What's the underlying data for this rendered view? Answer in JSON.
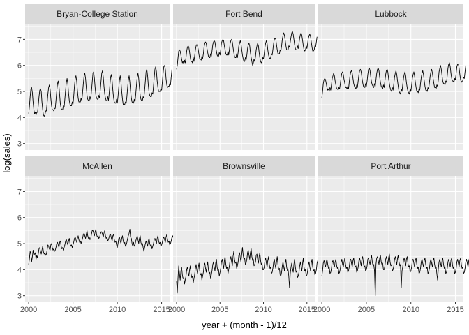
{
  "chart_data": {
    "type": "line",
    "facet_layout": "2x3",
    "xlabel": "year + (month - 1)/12",
    "ylabel": "log(sales)",
    "xlim": [
      1999.6,
      2015.9
    ],
    "ylim": [
      2.75,
      7.6
    ],
    "x_ticks": [
      2000,
      2005,
      2010,
      2015
    ],
    "x_tick_labels": [
      "2000",
      "2005",
      "2010",
      "2015"
    ],
    "y_ticks": [
      3,
      4,
      5,
      6,
      7
    ],
    "y_tick_labels": [
      "3",
      "4",
      "5",
      "6",
      "7"
    ],
    "grid": true,
    "colors": {
      "panel_bg": "#EBEBEB",
      "strip_bg": "#D9D9D9",
      "grid": "#FFFFFF",
      "line": "#000000"
    },
    "x_start": 2000.0,
    "x_step": 0.0833333,
    "facets": [
      {
        "name": "Bryan-College Station",
        "values": [
          4.15,
          4.4,
          4.8,
          5.1,
          5.15,
          4.95,
          4.6,
          4.3,
          4.15,
          4.2,
          4.1,
          4.2,
          4.2,
          4.45,
          4.8,
          5.05,
          5.1,
          5.0,
          4.6,
          4.3,
          4.1,
          4.05,
          4.1,
          4.25,
          4.25,
          4.55,
          4.9,
          5.15,
          5.25,
          5.1,
          4.75,
          4.45,
          4.3,
          4.3,
          4.25,
          4.35,
          4.35,
          4.65,
          5.0,
          5.3,
          5.4,
          5.2,
          4.85,
          4.5,
          4.35,
          4.3,
          4.3,
          4.45,
          4.4,
          4.7,
          5.05,
          5.35,
          5.5,
          5.3,
          4.95,
          4.65,
          4.5,
          4.45,
          4.45,
          4.6,
          4.5,
          4.8,
          5.2,
          5.5,
          5.6,
          5.4,
          5.05,
          4.75,
          4.6,
          4.6,
          4.6,
          4.75,
          4.65,
          4.95,
          5.3,
          5.6,
          5.7,
          5.5,
          5.15,
          4.85,
          4.7,
          4.65,
          4.65,
          4.8,
          4.7,
          5.0,
          5.35,
          5.7,
          5.75,
          5.5,
          5.15,
          4.85,
          4.75,
          4.7,
          4.7,
          4.85,
          4.75,
          5.05,
          5.4,
          5.7,
          5.8,
          5.55,
          5.2,
          4.9,
          4.75,
          4.65,
          4.65,
          4.8,
          4.65,
          4.9,
          5.25,
          5.55,
          5.65,
          5.4,
          5.05,
          4.75,
          4.6,
          4.55,
          4.55,
          4.7,
          4.55,
          4.8,
          5.15,
          5.45,
          5.6,
          5.35,
          5.0,
          4.7,
          4.5,
          4.5,
          4.5,
          4.6,
          4.55,
          4.8,
          5.15,
          5.45,
          5.6,
          5.35,
          5.0,
          4.75,
          4.6,
          4.55,
          4.55,
          4.7,
          4.6,
          4.9,
          5.25,
          5.55,
          5.7,
          5.5,
          5.15,
          4.85,
          4.7,
          4.65,
          4.65,
          4.8,
          4.75,
          5.05,
          5.4,
          5.75,
          5.85,
          5.6,
          5.25,
          4.95,
          4.85,
          4.8,
          4.8,
          4.95,
          4.9,
          5.2,
          5.55,
          5.85,
          5.95,
          5.75,
          5.4,
          5.15,
          5.0,
          5.0,
          5.0,
          5.1,
          5.05,
          5.35,
          5.7,
          5.95,
          6.0,
          5.85,
          5.5,
          5.25,
          5.15,
          5.2,
          5.2,
          5.3,
          5.25,
          5.55,
          5.85
        ]
      },
      {
        "name": "Fort Bend",
        "values": [
          5.85,
          6.0,
          6.3,
          6.55,
          6.6,
          6.55,
          6.4,
          6.25,
          6.1,
          6.15,
          6.05,
          6.2,
          6.1,
          6.3,
          6.55,
          6.7,
          6.75,
          6.7,
          6.5,
          6.3,
          6.15,
          6.15,
          6.1,
          6.3,
          6.15,
          6.35,
          6.6,
          6.75,
          6.8,
          6.75,
          6.6,
          6.4,
          6.25,
          6.25,
          6.2,
          6.35,
          6.25,
          6.45,
          6.7,
          6.85,
          6.9,
          6.85,
          6.65,
          6.5,
          6.35,
          6.3,
          6.3,
          6.45,
          6.35,
          6.55,
          6.8,
          6.9,
          6.95,
          6.9,
          6.7,
          6.55,
          6.4,
          6.35,
          6.35,
          6.5,
          6.4,
          6.6,
          6.85,
          6.95,
          7.0,
          6.95,
          6.75,
          6.6,
          6.45,
          6.4,
          6.4,
          6.55,
          6.4,
          6.6,
          6.85,
          6.95,
          7.0,
          6.9,
          6.7,
          6.5,
          6.35,
          6.3,
          6.3,
          6.45,
          6.3,
          6.5,
          6.75,
          6.85,
          6.95,
          6.85,
          6.6,
          6.4,
          6.25,
          6.15,
          6.15,
          6.3,
          6.2,
          6.4,
          6.65,
          6.8,
          6.85,
          6.75,
          6.5,
          6.3,
          6.15,
          6.0,
          6.1,
          6.25,
          6.15,
          6.35,
          6.6,
          6.75,
          6.85,
          6.75,
          6.5,
          6.3,
          6.15,
          6.1,
          6.15,
          6.3,
          6.25,
          6.45,
          6.7,
          6.85,
          6.95,
          6.85,
          6.6,
          6.4,
          6.3,
          6.25,
          6.3,
          6.45,
          6.4,
          6.6,
          6.85,
          7.0,
          7.05,
          7.0,
          6.8,
          6.6,
          6.45,
          6.45,
          6.45,
          6.6,
          6.55,
          6.75,
          7.0,
          7.15,
          7.25,
          7.15,
          6.95,
          6.75,
          6.6,
          6.6,
          6.6,
          6.75,
          6.7,
          6.9,
          7.1,
          7.25,
          7.3,
          7.2,
          7.0,
          6.8,
          6.65,
          6.6,
          6.6,
          6.75,
          6.65,
          6.85,
          7.05,
          7.2,
          7.25,
          7.15,
          6.95,
          6.75,
          6.6,
          6.55,
          6.6,
          6.75,
          6.65,
          6.85,
          7.05,
          7.15,
          7.2,
          7.1,
          6.9,
          6.7,
          6.55,
          6.55,
          6.6,
          6.75,
          6.7,
          6.9,
          7.1
        ]
      },
      {
        "name": "Lubbock",
        "values": [
          4.75,
          5.0,
          5.3,
          5.45,
          5.5,
          5.45,
          5.3,
          5.15,
          5.05,
          5.1,
          5.0,
          5.15,
          5.05,
          5.25,
          5.5,
          5.6,
          5.7,
          5.6,
          5.4,
          5.25,
          5.1,
          5.1,
          5.05,
          5.15,
          5.1,
          5.3,
          5.55,
          5.7,
          5.75,
          5.65,
          5.45,
          5.3,
          5.15,
          5.15,
          5.1,
          5.2,
          5.1,
          5.35,
          5.6,
          5.75,
          5.8,
          5.7,
          5.5,
          5.3,
          5.2,
          5.15,
          5.1,
          5.25,
          5.15,
          5.4,
          5.65,
          5.8,
          5.85,
          5.75,
          5.55,
          5.35,
          5.2,
          5.2,
          5.15,
          5.3,
          5.2,
          5.4,
          5.65,
          5.85,
          5.9,
          5.8,
          5.55,
          5.35,
          5.25,
          5.2,
          5.15,
          5.3,
          5.2,
          5.45,
          5.7,
          5.85,
          5.9,
          5.8,
          5.55,
          5.35,
          5.2,
          5.15,
          5.1,
          5.25,
          5.15,
          5.4,
          5.65,
          5.8,
          5.85,
          5.75,
          5.5,
          5.3,
          5.15,
          5.05,
          5.0,
          5.15,
          5.05,
          5.3,
          5.55,
          5.7,
          5.8,
          5.65,
          5.4,
          5.2,
          5.0,
          4.95,
          4.9,
          5.1,
          5.0,
          5.25,
          5.5,
          5.65,
          5.75,
          5.6,
          5.35,
          5.15,
          5.0,
          4.95,
          4.9,
          5.1,
          5.0,
          5.25,
          5.5,
          5.65,
          5.75,
          5.6,
          5.35,
          5.15,
          5.0,
          5.0,
          4.95,
          5.1,
          5.05,
          5.3,
          5.55,
          5.7,
          5.8,
          5.65,
          5.4,
          5.2,
          5.05,
          5.05,
          5.0,
          5.15,
          5.1,
          5.35,
          5.6,
          5.75,
          5.85,
          5.7,
          5.5,
          5.3,
          5.15,
          5.15,
          5.1,
          5.25,
          5.2,
          5.45,
          5.75,
          5.9,
          6.0,
          5.85,
          5.6,
          5.4,
          5.3,
          5.3,
          5.25,
          5.4,
          5.35,
          5.6,
          5.9,
          6.05,
          6.1,
          5.95,
          5.7,
          5.5,
          5.4,
          5.4,
          5.35,
          5.5,
          5.45,
          5.7,
          5.95,
          6.05,
          6.05,
          5.9,
          5.65,
          5.45,
          5.35,
          5.4,
          5.4,
          5.55,
          5.5,
          5.75,
          6.0
        ]
      },
      {
        "name": "McAllen",
        "values": [
          4.2,
          4.4,
          4.7,
          4.6,
          4.3,
          4.5,
          4.75,
          4.55,
          4.6,
          4.65,
          4.4,
          4.55,
          4.45,
          4.6,
          4.8,
          4.85,
          4.7,
          4.6,
          4.75,
          4.9,
          4.7,
          4.6,
          4.65,
          4.55,
          4.6,
          4.75,
          4.95,
          4.9,
          4.8,
          4.75,
          4.95,
          5.0,
          4.85,
          4.75,
          4.8,
          4.7,
          4.75,
          4.85,
          5.0,
          5.05,
          4.95,
          4.85,
          5.05,
          5.1,
          4.9,
          4.8,
          4.85,
          4.75,
          4.85,
          4.95,
          5.1,
          5.15,
          5.05,
          4.95,
          5.1,
          5.2,
          5.0,
          4.9,
          4.95,
          4.85,
          4.95,
          5.05,
          5.2,
          5.25,
          5.15,
          5.05,
          5.2,
          5.3,
          5.15,
          5.05,
          5.1,
          5.0,
          5.1,
          5.2,
          5.35,
          5.4,
          5.3,
          5.2,
          5.35,
          5.5,
          5.3,
          5.2,
          5.25,
          5.15,
          5.2,
          5.35,
          5.5,
          5.5,
          5.4,
          5.3,
          5.45,
          5.55,
          5.35,
          5.25,
          5.3,
          5.2,
          5.25,
          5.35,
          5.45,
          5.45,
          5.35,
          5.25,
          5.4,
          5.5,
          5.3,
          5.2,
          5.25,
          5.1,
          5.15,
          5.25,
          5.35,
          5.35,
          5.2,
          5.1,
          5.3,
          5.35,
          5.15,
          5.05,
          5.1,
          4.95,
          4.85,
          5.0,
          5.2,
          5.25,
          5.1,
          5.0,
          5.2,
          5.3,
          5.1,
          5.0,
          5.05,
          4.9,
          4.95,
          5.05,
          5.2,
          5.3,
          5.4,
          5.55,
          5.25,
          5.2,
          5.0,
          4.9,
          5.05,
          4.9,
          4.95,
          5.1,
          5.2,
          5.3,
          5.15,
          5.0,
          5.2,
          5.3,
          5.05,
          4.95,
          5.0,
          4.85,
          4.7,
          4.85,
          5.0,
          5.1,
          5.0,
          4.9,
          5.1,
          5.2,
          5.0,
          4.9,
          4.95,
          4.8,
          4.9,
          5.0,
          5.15,
          5.2,
          5.1,
          5.0,
          5.2,
          5.3,
          5.1,
          5.0,
          5.05,
          4.9,
          4.95,
          5.05,
          5.2,
          5.25,
          5.15,
          5.05,
          5.25,
          5.35,
          5.15,
          5.05,
          5.1,
          4.95,
          5.0,
          5.1,
          5.25,
          5.3,
          5.2,
          5.1,
          5.3,
          5.4
        ]
      },
      {
        "name": "Brownsville",
        "values": [
          3.55,
          3.1,
          3.7,
          4.15,
          3.85,
          3.6,
          3.95,
          4.1,
          3.8,
          3.65,
          3.7,
          3.45,
          3.6,
          3.75,
          4.0,
          4.1,
          3.9,
          3.75,
          4.0,
          4.15,
          3.85,
          3.7,
          3.75,
          3.5,
          3.65,
          3.8,
          4.05,
          4.2,
          4.0,
          3.85,
          4.1,
          4.25,
          3.95,
          3.8,
          3.85,
          3.6,
          3.75,
          3.9,
          4.15,
          4.25,
          4.05,
          3.9,
          4.15,
          4.3,
          4.0,
          3.85,
          3.9,
          3.65,
          3.8,
          3.95,
          4.2,
          4.3,
          4.1,
          3.95,
          4.25,
          4.4,
          4.1,
          3.95,
          4.0,
          3.75,
          3.9,
          4.05,
          4.3,
          4.4,
          4.2,
          4.05,
          4.35,
          4.5,
          4.2,
          4.05,
          4.1,
          3.85,
          4.0,
          4.15,
          4.4,
          4.5,
          4.3,
          4.15,
          4.5,
          4.7,
          4.4,
          4.25,
          4.3,
          4.05,
          4.15,
          4.3,
          4.55,
          4.65,
          4.45,
          4.3,
          4.6,
          4.85,
          4.55,
          4.4,
          4.45,
          4.2,
          4.25,
          4.4,
          4.65,
          4.75,
          4.55,
          4.4,
          4.65,
          4.8,
          4.5,
          4.35,
          4.4,
          4.15,
          4.2,
          4.3,
          4.55,
          4.6,
          4.4,
          4.25,
          4.5,
          4.65,
          4.35,
          4.2,
          4.25,
          4.0,
          4.0,
          4.1,
          4.35,
          4.45,
          4.25,
          4.1,
          4.35,
          4.5,
          4.2,
          4.05,
          4.1,
          3.85,
          3.9,
          4.05,
          4.3,
          4.4,
          4.2,
          4.05,
          4.3,
          4.5,
          4.2,
          4.0,
          4.05,
          3.8,
          3.75,
          3.9,
          4.15,
          4.3,
          4.1,
          3.95,
          4.25,
          4.4,
          4.1,
          3.95,
          4.0,
          3.75,
          3.3,
          3.85,
          4.1,
          4.25,
          4.05,
          3.9,
          4.2,
          4.4,
          4.1,
          3.9,
          3.95,
          3.7,
          3.75,
          3.9,
          4.15,
          4.3,
          4.1,
          3.95,
          4.25,
          4.45,
          4.1,
          3.95,
          4.0,
          3.75,
          3.8,
          3.95,
          4.2,
          4.3,
          4.1,
          3.95,
          4.25,
          4.4,
          4.1,
          3.95,
          4.0,
          3.8,
          3.85,
          4.0,
          4.25,
          4.35,
          4.15,
          4.0,
          4.3,
          4.4
        ]
      },
      {
        "name": "Port Arthur",
        "values": [
          3.75,
          3.95,
          4.25,
          4.35,
          4.2,
          4.1,
          4.3,
          4.4,
          4.2,
          4.05,
          4.1,
          3.85,
          3.9,
          4.05,
          4.3,
          4.35,
          4.2,
          4.1,
          4.3,
          4.4,
          4.15,
          4.05,
          4.1,
          3.85,
          3.9,
          4.05,
          4.3,
          4.4,
          4.2,
          4.1,
          4.3,
          4.45,
          4.2,
          4.05,
          4.1,
          3.9,
          3.95,
          4.1,
          4.35,
          4.4,
          4.25,
          4.1,
          4.35,
          4.45,
          4.2,
          4.1,
          4.15,
          3.9,
          3.95,
          4.1,
          4.35,
          4.45,
          4.3,
          4.15,
          4.4,
          4.5,
          4.25,
          4.1,
          4.15,
          3.95,
          4.0,
          4.15,
          4.4,
          4.45,
          4.3,
          4.2,
          4.4,
          4.55,
          4.3,
          4.15,
          4.2,
          3.95,
          3.0,
          4.2,
          4.45,
          4.5,
          4.35,
          4.2,
          4.45,
          4.55,
          4.3,
          4.2,
          4.25,
          4.0,
          4.0,
          4.15,
          4.4,
          4.5,
          4.35,
          4.2,
          4.45,
          4.6,
          4.3,
          4.15,
          4.2,
          3.95,
          4.0,
          4.15,
          4.4,
          4.5,
          4.35,
          4.2,
          4.45,
          4.55,
          4.3,
          4.15,
          4.2,
          3.3,
          3.95,
          4.1,
          4.35,
          4.45,
          4.3,
          4.15,
          4.4,
          4.5,
          4.25,
          4.1,
          4.15,
          3.9,
          3.95,
          4.1,
          4.35,
          4.4,
          4.25,
          4.1,
          4.35,
          4.45,
          4.2,
          4.05,
          4.1,
          3.85,
          3.9,
          4.05,
          4.3,
          4.4,
          4.25,
          4.1,
          4.35,
          4.45,
          4.2,
          4.05,
          4.1,
          3.85,
          3.9,
          4.05,
          4.3,
          4.4,
          4.25,
          4.1,
          4.35,
          4.45,
          4.2,
          4.05,
          4.1,
          3.85,
          3.6,
          4.05,
          4.3,
          4.4,
          4.25,
          4.1,
          4.35,
          4.45,
          4.2,
          4.05,
          4.1,
          3.85,
          3.9,
          4.05,
          4.3,
          4.4,
          4.25,
          4.1,
          4.35,
          4.45,
          4.2,
          4.05,
          4.1,
          3.85,
          3.9,
          4.05,
          4.3,
          4.4,
          4.25,
          4.1,
          4.35,
          4.45,
          4.2,
          4.05,
          4.1,
          3.85,
          3.9,
          4.05,
          4.3,
          4.4,
          4.25,
          4.1,
          4.35,
          4.45
        ]
      }
    ]
  }
}
